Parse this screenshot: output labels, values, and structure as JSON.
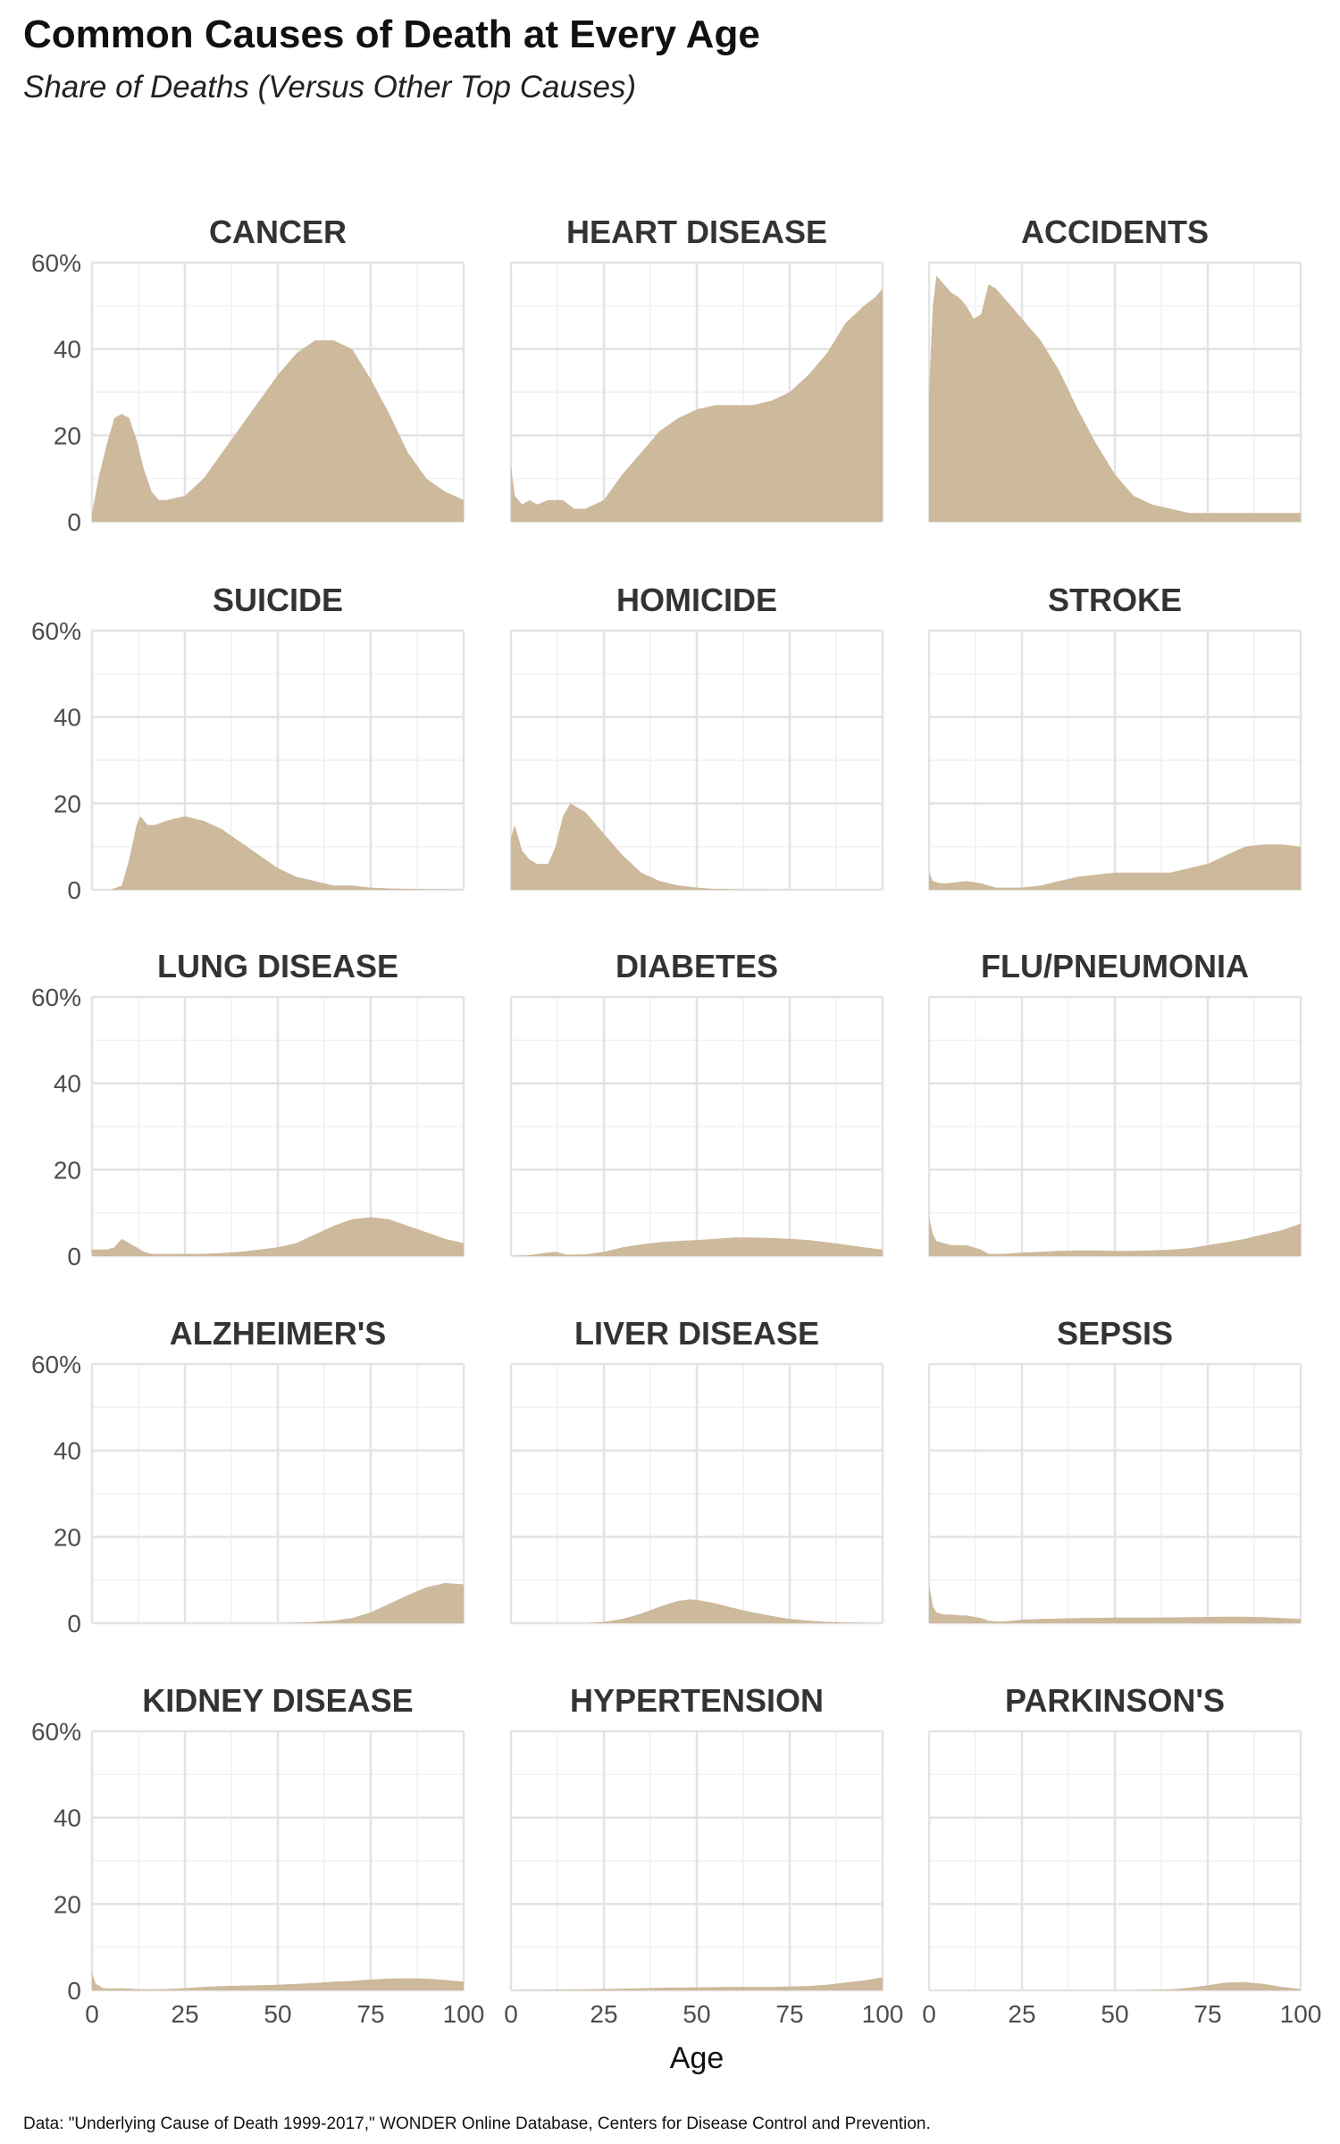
{
  "title": "Common Causes of Death at Every Age",
  "subtitle": "Share of Deaths (Versus Other Top Causes)",
  "caption": "Data: \"Underlying Cause of Death 1999-2017,\" WONDER Online Database, Centers for Disease Control and Prevention.",
  "colors": {
    "fill": "#cdb99b",
    "grid_major": "#e3e3e3",
    "grid_minor": "#f1f1f1"
  },
  "chart_data": {
    "type": "area",
    "title": "Common Causes of Death at Every Age",
    "xlabel": "Age",
    "ylabel": "",
    "xlim": [
      0,
      100
    ],
    "ylim": [
      0,
      60
    ],
    "x_ticks": [
      "0",
      "25",
      "50",
      "75",
      "100"
    ],
    "y_ticks": [
      "0",
      "20",
      "40",
      "60%"
    ],
    "grid": true,
    "layout": "facet-grid-5x3",
    "series": [
      {
        "name": "CANCER",
        "x": [
          0,
          2,
          4,
          6,
          8,
          10,
          12,
          14,
          16,
          18,
          20,
          25,
          30,
          35,
          40,
          45,
          50,
          55,
          60,
          65,
          70,
          75,
          80,
          85,
          90,
          95,
          100
        ],
        "values": [
          2,
          11,
          18,
          24,
          25,
          24,
          19,
          12,
          7,
          5,
          5,
          6,
          10,
          16,
          22,
          28,
          34,
          39,
          42,
          42,
          40,
          33,
          25,
          16,
          10,
          7,
          5
        ]
      },
      {
        "name": "HEART DISEASE",
        "x": [
          0,
          1,
          3,
          5,
          7,
          10,
          14,
          17,
          20,
          25,
          30,
          35,
          40,
          45,
          50,
          55,
          60,
          65,
          70,
          75,
          80,
          85,
          90,
          95,
          98,
          100
        ],
        "values": [
          13,
          6,
          4,
          5,
          4,
          5,
          5,
          3,
          3,
          5,
          11,
          16,
          21,
          24,
          26,
          27,
          27,
          27,
          28,
          30,
          34,
          39,
          46,
          50,
          52,
          54
        ]
      },
      {
        "name": "ACCIDENTS",
        "x": [
          0,
          1,
          2,
          4,
          6,
          8,
          10,
          12,
          14,
          16,
          18,
          20,
          22,
          25,
          30,
          35,
          40,
          45,
          50,
          55,
          60,
          65,
          70,
          75,
          80,
          85,
          90,
          95,
          100
        ],
        "values": [
          30,
          50,
          57,
          55,
          53,
          52,
          50,
          47,
          48,
          55,
          54,
          52,
          50,
          47,
          42,
          35,
          26,
          18,
          11,
          6,
          4,
          3,
          2,
          2,
          2,
          2,
          2,
          2,
          2
        ]
      },
      {
        "name": "SUICIDE",
        "x": [
          0,
          5,
          8,
          10,
          12,
          13,
          15,
          17,
          20,
          25,
          30,
          35,
          40,
          45,
          50,
          55,
          60,
          65,
          70,
          75,
          80,
          85,
          90,
          95,
          100
        ],
        "values": [
          0,
          0,
          1,
          7,
          15,
          17,
          15,
          15,
          16,
          17,
          16,
          14,
          11,
          8,
          5,
          3,
          2,
          1,
          1,
          0.5,
          0.3,
          0.2,
          0.1,
          0.1,
          0
        ],
        "ylabel": ""
      },
      {
        "name": "HOMICIDE",
        "x": [
          0,
          1,
          3,
          5,
          7,
          10,
          12,
          14,
          16,
          18,
          20,
          25,
          30,
          35,
          40,
          45,
          50,
          55,
          60,
          70,
          80,
          90,
          100
        ],
        "values": [
          12,
          15,
          9,
          7,
          6,
          6,
          10,
          17,
          20,
          19,
          18,
          13,
          8,
          4,
          2,
          1,
          0.5,
          0.2,
          0.1,
          0,
          0,
          0,
          0
        ]
      },
      {
        "name": "STROKE",
        "x": [
          0,
          1,
          3,
          5,
          10,
          14,
          18,
          20,
          25,
          30,
          35,
          40,
          45,
          50,
          55,
          60,
          65,
          70,
          75,
          80,
          85,
          90,
          95,
          100
        ],
        "values": [
          4,
          2,
          1.5,
          1.5,
          2,
          1.5,
          0.5,
          0.5,
          0.5,
          1,
          2,
          3,
          3.5,
          4,
          4,
          4,
          4,
          5,
          6,
          8,
          10,
          10.5,
          10.5,
          10
        ]
      },
      {
        "name": "LUNG DISEASE",
        "x": [
          0,
          2,
          4,
          6,
          8,
          10,
          12,
          14,
          16,
          20,
          25,
          30,
          35,
          40,
          45,
          50,
          55,
          60,
          65,
          70,
          75,
          80,
          85,
          90,
          95,
          100
        ],
        "values": [
          1.5,
          1.5,
          1.5,
          2,
          4,
          3,
          2,
          1,
          0.5,
          0.5,
          0.5,
          0.5,
          0.7,
          1,
          1.5,
          2,
          3,
          5,
          7,
          8.5,
          9,
          8.5,
          7,
          5.5,
          4,
          3
        ]
      },
      {
        "name": "DIABETES",
        "x": [
          0,
          5,
          10,
          12,
          15,
          20,
          25,
          30,
          35,
          40,
          45,
          50,
          55,
          60,
          65,
          70,
          75,
          80,
          85,
          90,
          95,
          100
        ],
        "values": [
          0,
          0.2,
          0.8,
          1,
          0.3,
          0.4,
          1,
          2,
          2.7,
          3.2,
          3.5,
          3.7,
          4,
          4.3,
          4.3,
          4.2,
          4,
          3.7,
          3.2,
          2.6,
          2,
          1.5
        ]
      },
      {
        "name": "FLU/PNEUMONIA",
        "x": [
          0,
          1,
          2,
          4,
          6,
          8,
          10,
          12,
          14,
          16,
          20,
          25,
          30,
          35,
          40,
          45,
          50,
          55,
          60,
          65,
          70,
          75,
          80,
          85,
          90,
          95,
          100
        ],
        "values": [
          9,
          5,
          3.5,
          3,
          2.5,
          2.5,
          2.5,
          2,
          1.5,
          0.5,
          0.5,
          0.8,
          1,
          1.2,
          1.3,
          1.3,
          1.2,
          1.2,
          1.3,
          1.5,
          1.8,
          2.5,
          3.2,
          4,
          5,
          6,
          7.5
        ]
      },
      {
        "name": "ALZHEIMER'S",
        "x": [
          0,
          50,
          55,
          60,
          65,
          70,
          75,
          80,
          85,
          90,
          95,
          100
        ],
        "values": [
          0,
          0,
          0.1,
          0.3,
          0.6,
          1.2,
          2.5,
          4.5,
          6.5,
          8.3,
          9.3,
          9
        ]
      },
      {
        "name": "LIVER DISEASE",
        "x": [
          0,
          20,
          25,
          30,
          35,
          40,
          45,
          48,
          50,
          55,
          60,
          65,
          70,
          75,
          80,
          85,
          90,
          95,
          100
        ],
        "values": [
          0,
          0,
          0.3,
          1,
          2.2,
          3.8,
          5.2,
          5.5,
          5.4,
          4.6,
          3.5,
          2.5,
          1.7,
          1,
          0.6,
          0.3,
          0.15,
          0.05,
          0
        ]
      },
      {
        "name": "SEPSIS",
        "x": [
          0,
          1,
          2,
          4,
          6,
          8,
          10,
          12,
          14,
          16,
          18,
          20,
          25,
          30,
          40,
          50,
          60,
          70,
          80,
          85,
          90,
          95,
          100
        ],
        "values": [
          9,
          4,
          2.5,
          2,
          2,
          1.8,
          1.8,
          1.5,
          1.2,
          0.6,
          0.4,
          0.4,
          0.8,
          1,
          1.2,
          1.3,
          1.3,
          1.4,
          1.5,
          1.5,
          1.4,
          1.2,
          1
        ]
      },
      {
        "name": "KIDNEY DISEASE",
        "x": [
          0,
          1,
          3,
          5,
          8,
          10,
          12,
          15,
          20,
          25,
          30,
          35,
          40,
          45,
          50,
          55,
          60,
          65,
          70,
          75,
          80,
          85,
          90,
          95,
          100
        ],
        "values": [
          4,
          1.5,
          0.5,
          0.4,
          0.5,
          0.4,
          0.3,
          0.2,
          0.3,
          0.5,
          0.8,
          1,
          1.1,
          1.2,
          1.3,
          1.5,
          1.7,
          2,
          2.2,
          2.5,
          2.7,
          2.8,
          2.7,
          2.4,
          2
        ]
      },
      {
        "name": "HYPERTENSION",
        "x": [
          0,
          10,
          20,
          25,
          30,
          40,
          50,
          60,
          70,
          80,
          85,
          90,
          95,
          100
        ],
        "values": [
          0,
          0.1,
          0.2,
          0.3,
          0.4,
          0.6,
          0.7,
          0.8,
          0.8,
          1,
          1.3,
          1.8,
          2.3,
          3
        ]
      },
      {
        "name": "PARKINSON'S",
        "x": [
          0,
          55,
          60,
          65,
          70,
          75,
          80,
          85,
          90,
          95,
          100
        ],
        "values": [
          0,
          0,
          0.1,
          0.2,
          0.6,
          1.2,
          1.8,
          1.9,
          1.5,
          0.8,
          0.3
        ]
      }
    ]
  }
}
